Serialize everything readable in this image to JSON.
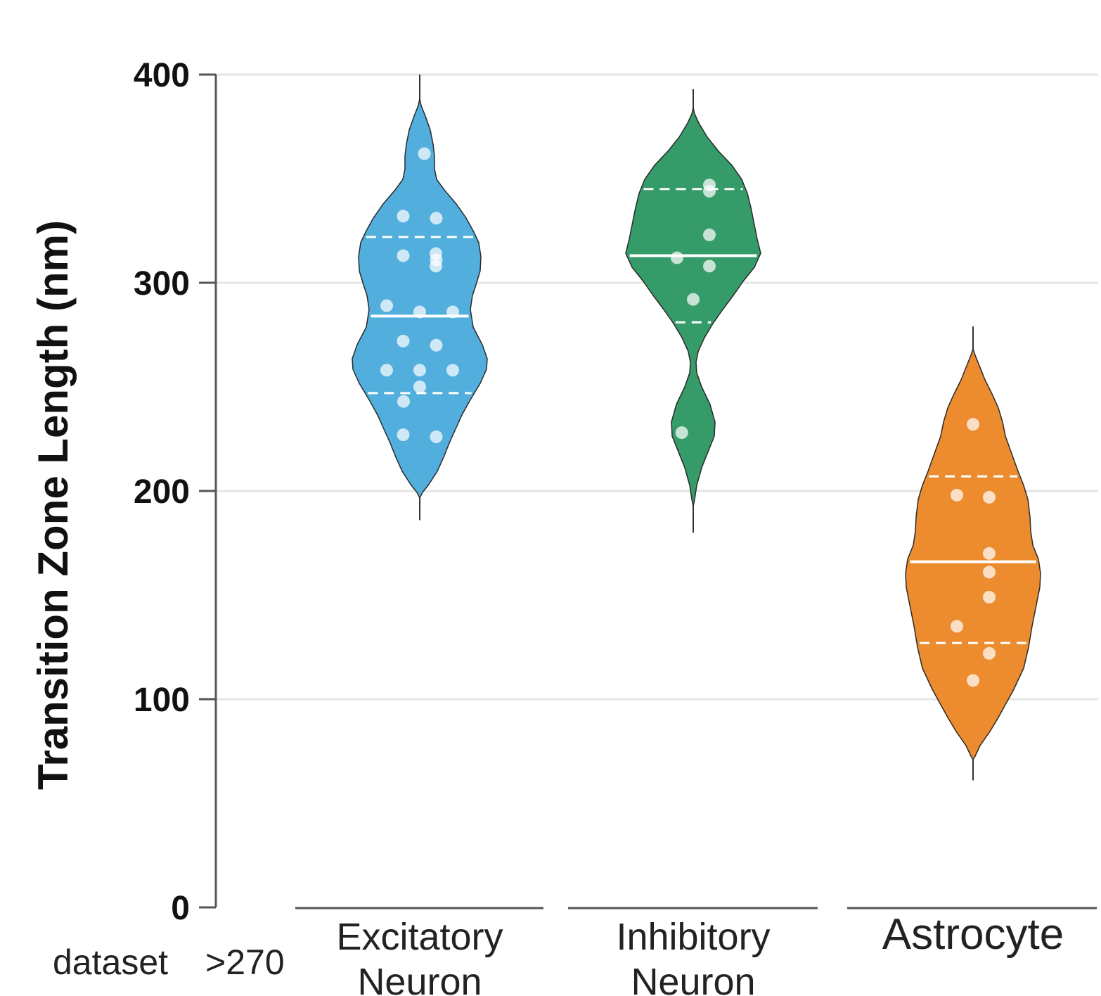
{
  "chart_data": {
    "type": "violin",
    "ylabel": "Transition Zone Length (nm)",
    "xlabel": "",
    "ylim": [
      0,
      400
    ],
    "yticks": [
      "0",
      "100",
      "200",
      "300",
      "400"
    ],
    "grid": true,
    "annotation": {
      "label": "dataset",
      "value": ">270"
    },
    "series": [
      {
        "category_lines": [
          "Excitatory",
          "Neuron"
        ],
        "color": "#52AEDD",
        "median": 284,
        "q1": 247,
        "q3": 322,
        "range": [
          186,
          400
        ],
        "points": [
          362,
          332,
          331,
          314,
          313,
          311,
          308,
          289,
          286,
          286,
          272,
          270,
          258,
          258,
          258,
          250,
          243,
          227,
          226
        ]
      },
      {
        "category_lines": [
          "Inhibitory",
          "Neuron"
        ],
        "color": "#359B69",
        "median": 313,
        "q1": 281,
        "q3": 345,
        "range": [
          180,
          393
        ],
        "points": [
          347,
          344,
          323,
          312,
          308,
          292,
          228
        ]
      },
      {
        "category_lines": [
          "Astrocyte"
        ],
        "color": "#EC8C2F",
        "median": 166,
        "q1": 127,
        "q3": 207,
        "range": [
          61,
          279
        ],
        "points": [
          232,
          197,
          198,
          170,
          161,
          149,
          135,
          122,
          109
        ]
      }
    ]
  },
  "colors": {
    "grid": "#e5e5e5",
    "axis": "#555555",
    "text": "#111111",
    "overlay": "#ffffff"
  }
}
